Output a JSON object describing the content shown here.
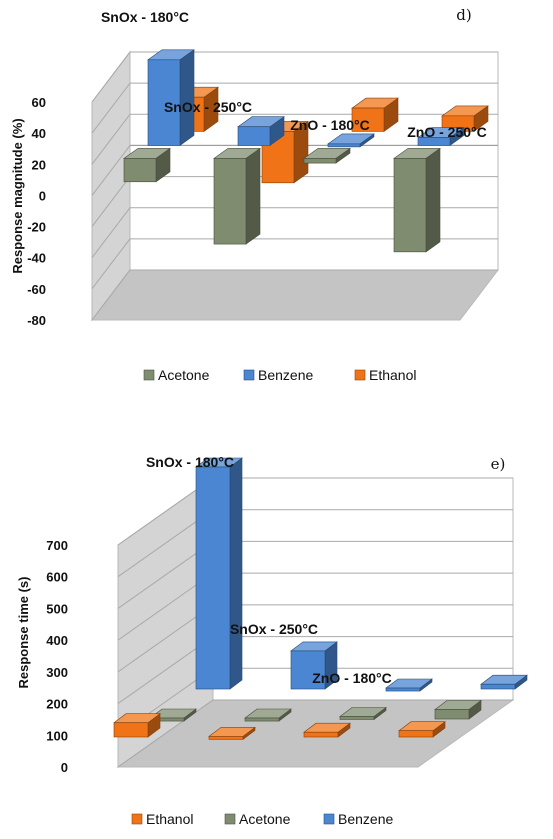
{
  "colors": {
    "Acetone": "#7f8c6f",
    "Benzene": "#4a86d2",
    "Ethanol": "#f07417",
    "wall": "#d4d4d4",
    "floor": "#c4c4c4"
  },
  "chart_data": [
    {
      "panel": "d)",
      "type": "bar",
      "ylabel": "Response magnitude (%)",
      "ylim": [
        -80,
        60
      ],
      "yticks": [
        "60",
        "40",
        "20",
        "0",
        "-20",
        "-40",
        "-60",
        "-80"
      ],
      "groups": [
        "SnOx - 180°C",
        "SnOx - 250°C",
        "ZnO - 180°C",
        "ZnO - 250°C"
      ],
      "legend": [
        "Acetone",
        "Benzene",
        "Ethanol"
      ],
      "legend_position": "bottom",
      "series": [
        {
          "name": "Acetone",
          "values": [
            -15,
            -55,
            -3,
            -60
          ]
        },
        {
          "name": "Benzene",
          "values": [
            55,
            12,
            1,
            5
          ]
        },
        {
          "name": "Ethanol",
          "values": [
            22,
            -33,
            15,
            10
          ]
        }
      ]
    },
    {
      "panel": "e)",
      "type": "bar",
      "ylabel": "Response time (s)",
      "ylim": [
        0,
        700
      ],
      "yticks": [
        "700",
        "600",
        "500",
        "400",
        "300",
        "200",
        "100",
        "0"
      ],
      "groups": [
        "SnOx - 180°C",
        "SnOx - 250°C",
        "ZnO - 180°C",
        ""
      ],
      "legend": [
        "Ethanol",
        "Acetone",
        "Benzene"
      ],
      "legend_position": "bottom",
      "series": [
        {
          "name": "Ethanol",
          "values": [
            45,
            2,
            15,
            20
          ]
        },
        {
          "name": "Acetone",
          "values": [
            3,
            3,
            8,
            30
          ]
        },
        {
          "name": "Benzene",
          "values": [
            700,
            120,
            3,
            15
          ]
        }
      ]
    }
  ]
}
